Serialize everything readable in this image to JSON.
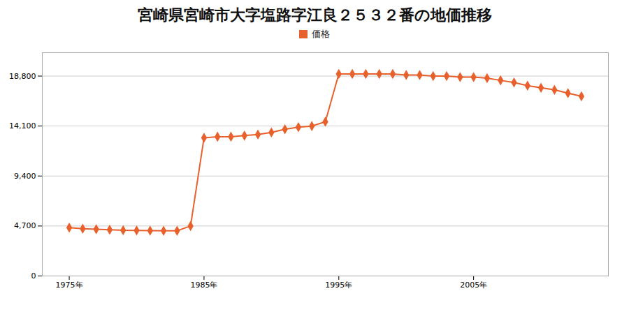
{
  "chart_data": {
    "type": "line",
    "title": "宮崎県宮崎市大字塩路字江良２５３２番の地価推移",
    "x": [
      1975,
      1976,
      1977,
      1978,
      1979,
      1980,
      1981,
      1982,
      1983,
      1984,
      1985,
      1986,
      1987,
      1988,
      1989,
      1990,
      1991,
      1992,
      1993,
      1994,
      1995,
      1996,
      1997,
      1998,
      1999,
      2000,
      2001,
      2002,
      2003,
      2004,
      2005,
      2006,
      2007,
      2008,
      2009,
      2010,
      2011,
      2012,
      2013
    ],
    "series": [
      {
        "name": "価格",
        "color": "#e8612c",
        "marker": "diamond",
        "values": [
          4550,
          4450,
          4400,
          4350,
          4300,
          4280,
          4260,
          4250,
          4250,
          4700,
          13000,
          13100,
          13100,
          13200,
          13300,
          13500,
          13800,
          14000,
          14100,
          14500,
          19000,
          19000,
          19000,
          19000,
          19000,
          18900,
          18900,
          18800,
          18800,
          18700,
          18700,
          18600,
          18400,
          18200,
          17900,
          17700,
          17500,
          17200,
          16900
        ]
      }
    ],
    "xlim": [
      1973,
      2015
    ],
    "xticks": [
      {
        "value": 1975,
        "label": "1975年"
      },
      {
        "value": 1985,
        "label": "1985年"
      },
      {
        "value": 1995,
        "label": "1995年"
      },
      {
        "value": 2005,
        "label": "2005年"
      }
    ],
    "ylim": [
      0,
      21000
    ],
    "yticks": [
      0,
      {
        "value": 4700,
        "label": "4,700"
      },
      {
        "value": 9400,
        "label": "9,400"
      },
      {
        "value": 14100,
        "label": "14,100"
      },
      {
        "value": 18800,
        "label": "18,800"
      }
    ],
    "grid": true,
    "legend": "top"
  }
}
